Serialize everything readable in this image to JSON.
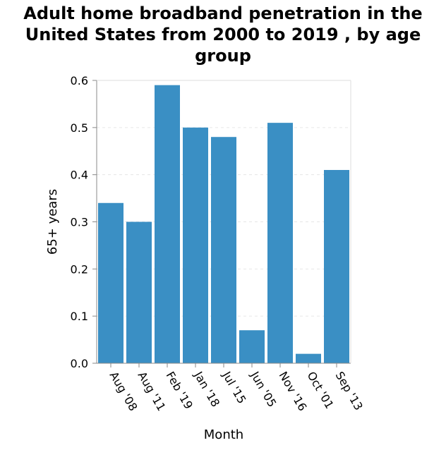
{
  "chart_data": {
    "type": "bar",
    "title": "Adult home broadband penetration in the United States from 2000 to 2019 , by age group",
    "xlabel": "Month",
    "ylabel": "65+ years",
    "categories": [
      "Aug '08",
      "Aug '11",
      "Feb '19",
      "Jan '18",
      "Jul '15",
      "Jun '05",
      "Nov '16",
      "Oct '01",
      "Sep '13"
    ],
    "values": [
      0.34,
      0.3,
      0.59,
      0.5,
      0.48,
      0.07,
      0.51,
      0.02,
      0.41
    ],
    "ylim": [
      0,
      0.6
    ],
    "yticks": [
      "0.0",
      "0.1",
      "0.2",
      "0.3",
      "0.4",
      "0.5",
      "0.6"
    ],
    "grid": true,
    "bar_color": "#3a8fc4",
    "grid_color": "#e6e6e6"
  }
}
